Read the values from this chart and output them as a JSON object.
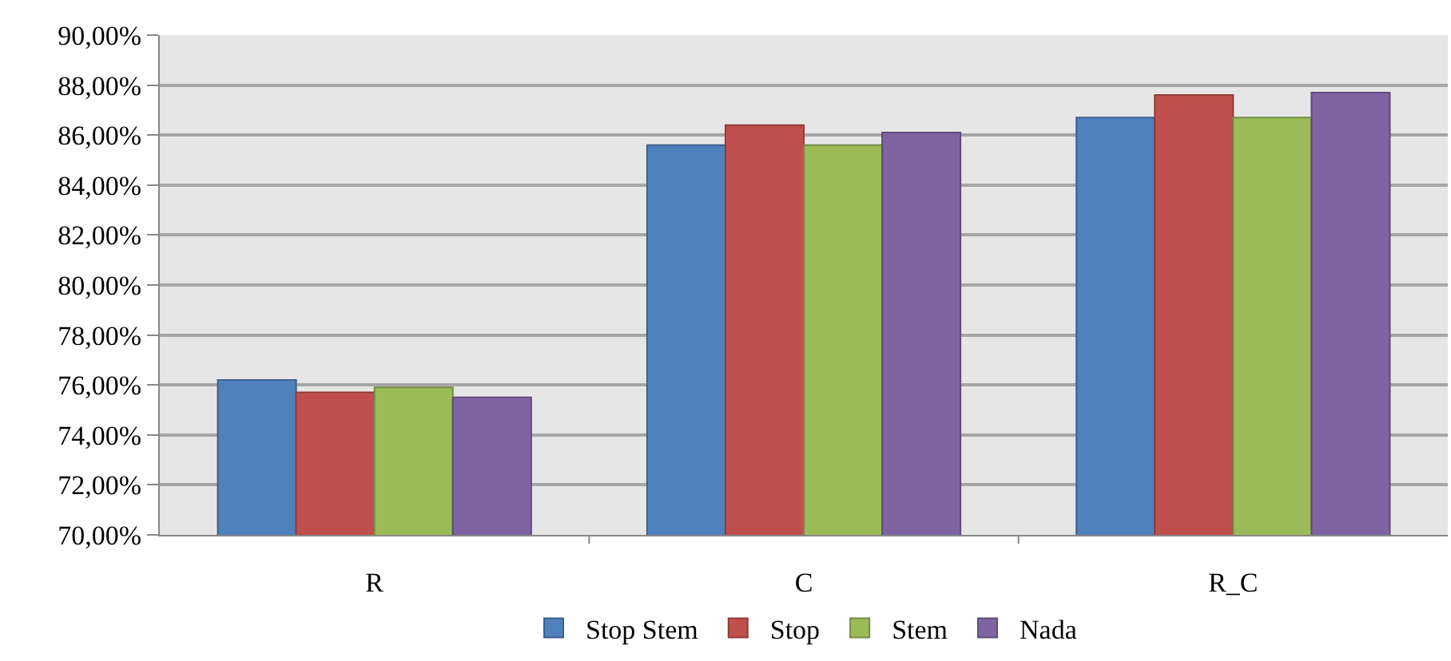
{
  "chart_data": {
    "type": "bar",
    "categories": [
      "R",
      "C",
      "R_C"
    ],
    "series": [
      {
        "name": "Stop Stem",
        "color": "#4f81bd",
        "values": [
          76.2,
          85.6,
          86.7
        ]
      },
      {
        "name": "Stop",
        "color": "#c0504d",
        "values": [
          75.7,
          86.4,
          87.6
        ]
      },
      {
        "name": "Stem",
        "color": "#9bbb59",
        "values": [
          75.9,
          85.6,
          86.7
        ]
      },
      {
        "name": "Nada",
        "color": "#8064a2",
        "values": [
          75.5,
          86.1,
          87.7
        ]
      }
    ],
    "ylim": [
      70,
      90
    ],
    "yticks": [
      {
        "value": 70,
        "label": "70,00%"
      },
      {
        "value": 72,
        "label": "72,00%"
      },
      {
        "value": 74,
        "label": "74,00%"
      },
      {
        "value": 76,
        "label": "76,00%"
      },
      {
        "value": 78,
        "label": "78,00%"
      },
      {
        "value": 80,
        "label": "80,00%"
      },
      {
        "value": 82,
        "label": "82,00%"
      },
      {
        "value": 84,
        "label": "84,00%"
      },
      {
        "value": 86,
        "label": "86,00%"
      },
      {
        "value": 88,
        "label": "88,00%"
      },
      {
        "value": 90,
        "label": "90,00%"
      }
    ],
    "grid": "y",
    "legend": "bottom"
  }
}
